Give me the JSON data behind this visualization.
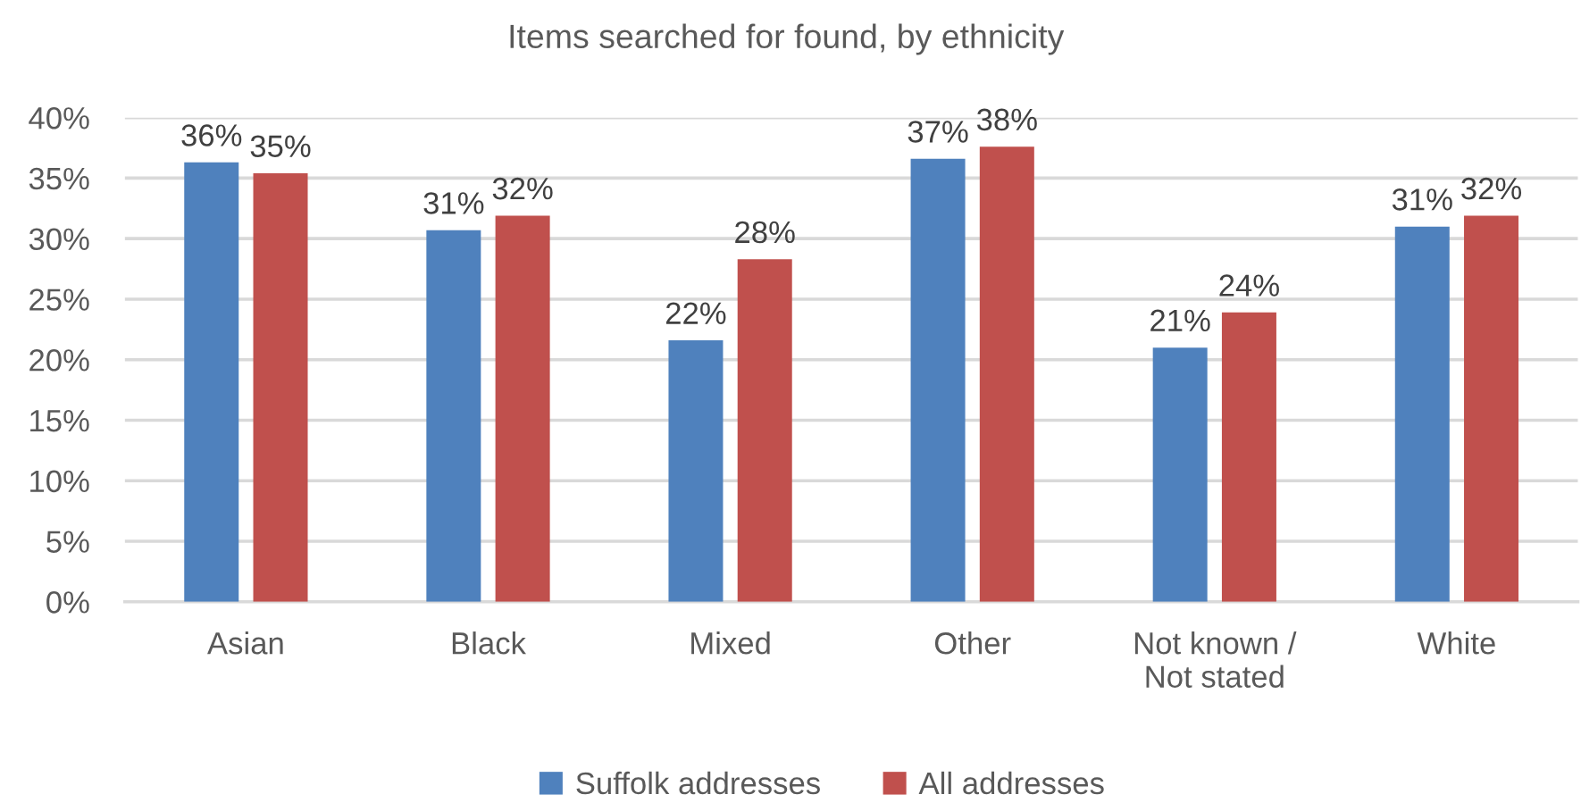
{
  "chart_data": {
    "type": "bar",
    "title": "Items searched for found, by ethnicity",
    "categories": [
      "Asian",
      "Black",
      "Mixed",
      "Other",
      "Not known /\nNot stated",
      "White"
    ],
    "series": [
      {
        "name": "Suffolk addresses",
        "color": "#4f81bd",
        "values": [
          36.3,
          30.7,
          21.6,
          36.6,
          21.0,
          31.0
        ],
        "value_labels": [
          "36%",
          "31%",
          "22%",
          "37%",
          "21%",
          "31%"
        ]
      },
      {
        "name": "All addresses",
        "color": "#c0504d",
        "values": [
          35.4,
          31.9,
          28.3,
          37.6,
          23.9,
          31.9
        ],
        "value_labels": [
          "35%",
          "32%",
          "28%",
          "38%",
          "24%",
          "32%"
        ]
      }
    ],
    "ylim": [
      0,
      40
    ],
    "yticks": [
      {
        "value": 0,
        "label": "0%"
      },
      {
        "value": 5,
        "label": "5%"
      },
      {
        "value": 10,
        "label": "10%"
      },
      {
        "value": 15,
        "label": "15%"
      },
      {
        "value": 20,
        "label": "20%"
      },
      {
        "value": 25,
        "label": "25%"
      },
      {
        "value": 30,
        "label": "30%"
      },
      {
        "value": 35,
        "label": "35%"
      },
      {
        "value": 40,
        "label": "40%"
      }
    ],
    "grid": "y",
    "legend": "bottom"
  }
}
